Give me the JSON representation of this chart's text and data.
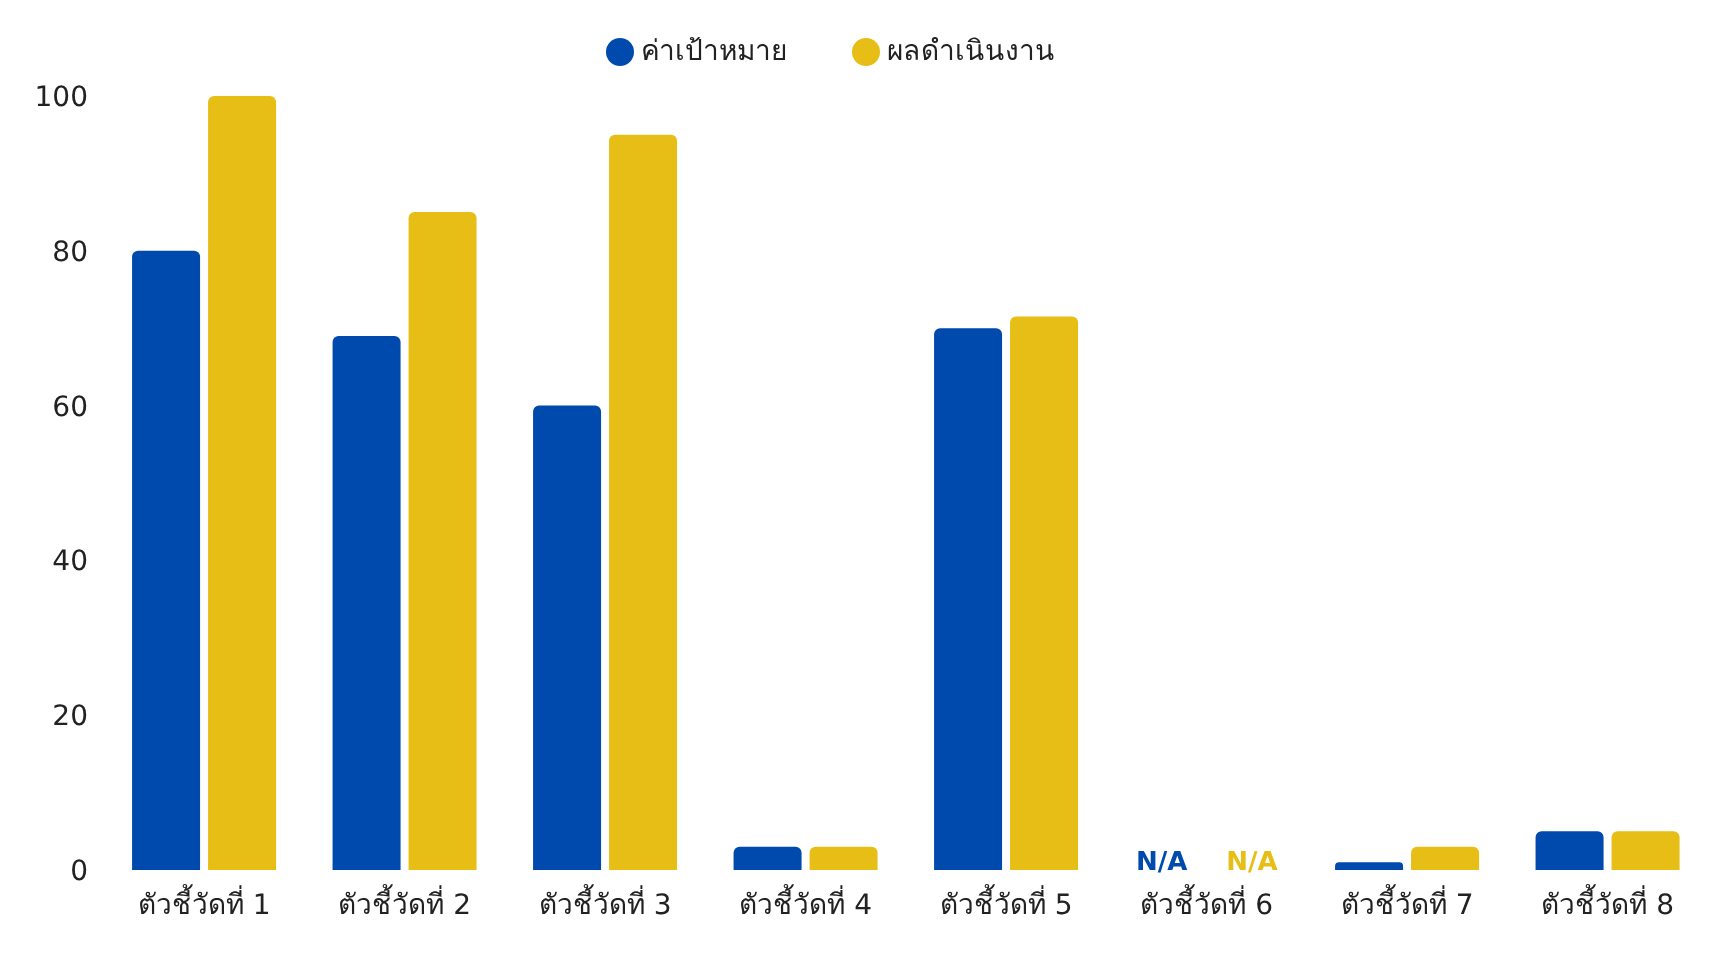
{
  "chart_data": {
    "type": "bar",
    "categories": [
      "ตัวชี้วัดที่ 1",
      "ตัวชี้วัดที่ 2",
      "ตัวชี้วัดที่ 3",
      "ตัวชี้วัดที่ 4",
      "ตัวชี้วัดที่ 5",
      "ตัวชี้วัดที่ 6",
      "ตัวชี้วัดที่ 7",
      "ตัวชี้วัดที่ 8"
    ],
    "series": [
      {
        "name": "ค่าเป้าหมาย",
        "color": "#004aad",
        "values": [
          80,
          69,
          60,
          3,
          70,
          null,
          1,
          5
        ],
        "value_labels": [
          null,
          null,
          null,
          null,
          null,
          "N/A",
          null,
          null
        ]
      },
      {
        "name": "ผลดำเนินงาน",
        "color": "#e6be16",
        "values": [
          100,
          85,
          95,
          3,
          71.5,
          null,
          3,
          5
        ],
        "value_labels": [
          null,
          null,
          null,
          null,
          null,
          "N/A",
          null,
          null
        ]
      }
    ],
    "ylim": [
      0,
      100
    ],
    "yticks": [
      0,
      20,
      40,
      60,
      80,
      100
    ],
    "grid": false,
    "legend": "top"
  }
}
